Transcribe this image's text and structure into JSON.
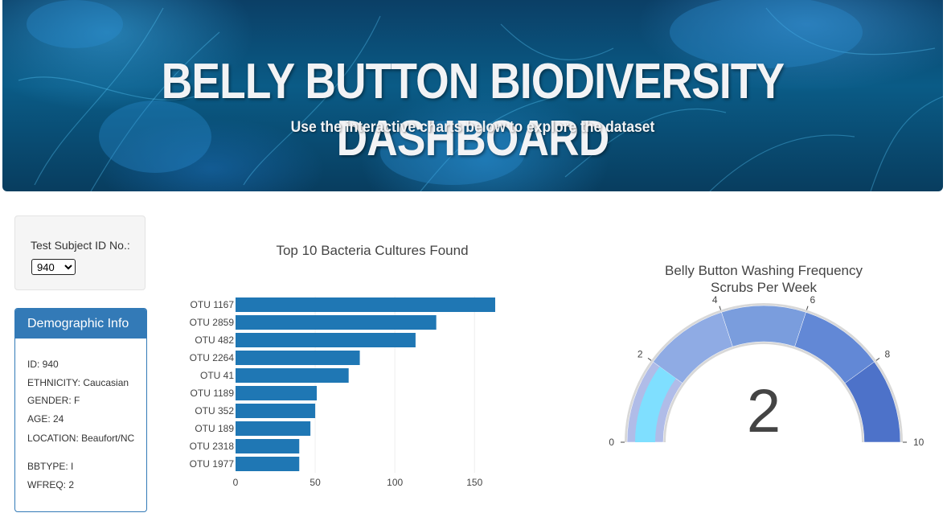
{
  "header": {
    "title": "BELLY BUTTON BIODIVERSITY DASHBOARD",
    "subtitle": "Use the interactive charts below to explore the dataset"
  },
  "selector": {
    "label": "Test Subject ID No.:",
    "selected": "940"
  },
  "demographics": {
    "heading": "Demographic Info",
    "lines": [
      "ID: 940",
      "ETHNICITY: Caucasian",
      "GENDER: F",
      "AGE: 24",
      "LOCATION: Beaufort/NC",
      "BBTYPE: I",
      "WFREQ: 2"
    ]
  },
  "colors": {
    "primary": "#337ab7",
    "bar": "#1f77b4",
    "gauge_needle_band": "#7fdfff",
    "gauge_bands": [
      "#b0bce8",
      "#8fabe4",
      "#7a9ddd",
      "#6288d6",
      "#4d72c9"
    ]
  },
  "chart_data": [
    {
      "type": "bar",
      "orientation": "horizontal",
      "title": "Top 10 Bacteria Cultures Found",
      "categories": [
        "OTU 1167",
        "OTU 2859",
        "OTU 482",
        "OTU 2264",
        "OTU 41",
        "OTU 1189",
        "OTU 352",
        "OTU 189",
        "OTU 2318",
        "OTU 1977"
      ],
      "values": [
        163,
        126,
        113,
        78,
        71,
        51,
        50,
        47,
        40,
        40
      ],
      "xlim": [
        0,
        163
      ],
      "xticks": [
        0,
        50,
        100,
        150
      ],
      "grid": true
    },
    {
      "type": "gauge",
      "title": "Belly Button Washing Frequency",
      "subtitle": "Scrubs Per Week",
      "value": 2,
      "range": [
        0,
        10
      ],
      "ticks": [
        0,
        2,
        4,
        6,
        8,
        10
      ],
      "steps": [
        [
          0,
          2
        ],
        [
          2,
          4
        ],
        [
          4,
          6
        ],
        [
          6,
          8
        ],
        [
          8,
          10
        ]
      ]
    }
  ]
}
